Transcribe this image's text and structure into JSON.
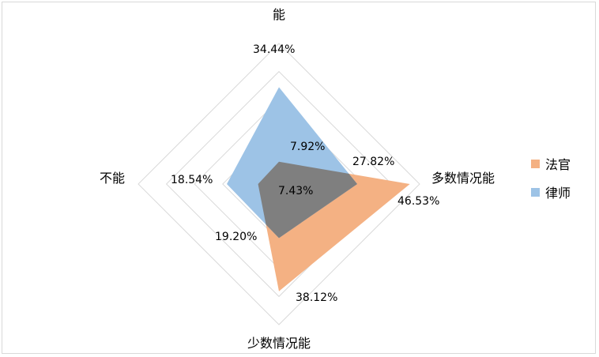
{
  "chart_data": {
    "type": "radar",
    "axes": [
      "能",
      "多数情况能",
      "少数情况能",
      "不能"
    ],
    "rmax": 50,
    "ring_count": 5,
    "grid": true,
    "legend_position": "right",
    "series": [
      {
        "name": "法官",
        "values": [
          7.92,
          46.53,
          38.12,
          7.43
        ],
        "labels": [
          "7.92%",
          "46.53%",
          "38.12%",
          "7.43%"
        ],
        "color": "#F4B183"
      },
      {
        "name": "律师",
        "values": [
          34.44,
          27.82,
          19.2,
          18.54
        ],
        "labels": [
          "34.44%",
          "27.82%",
          "19.20%",
          "18.54%"
        ],
        "color": "#9DC3E6"
      }
    ]
  },
  "colors": {
    "grid": "#d9d9d9",
    "overlap": "#7f7f7f"
  }
}
